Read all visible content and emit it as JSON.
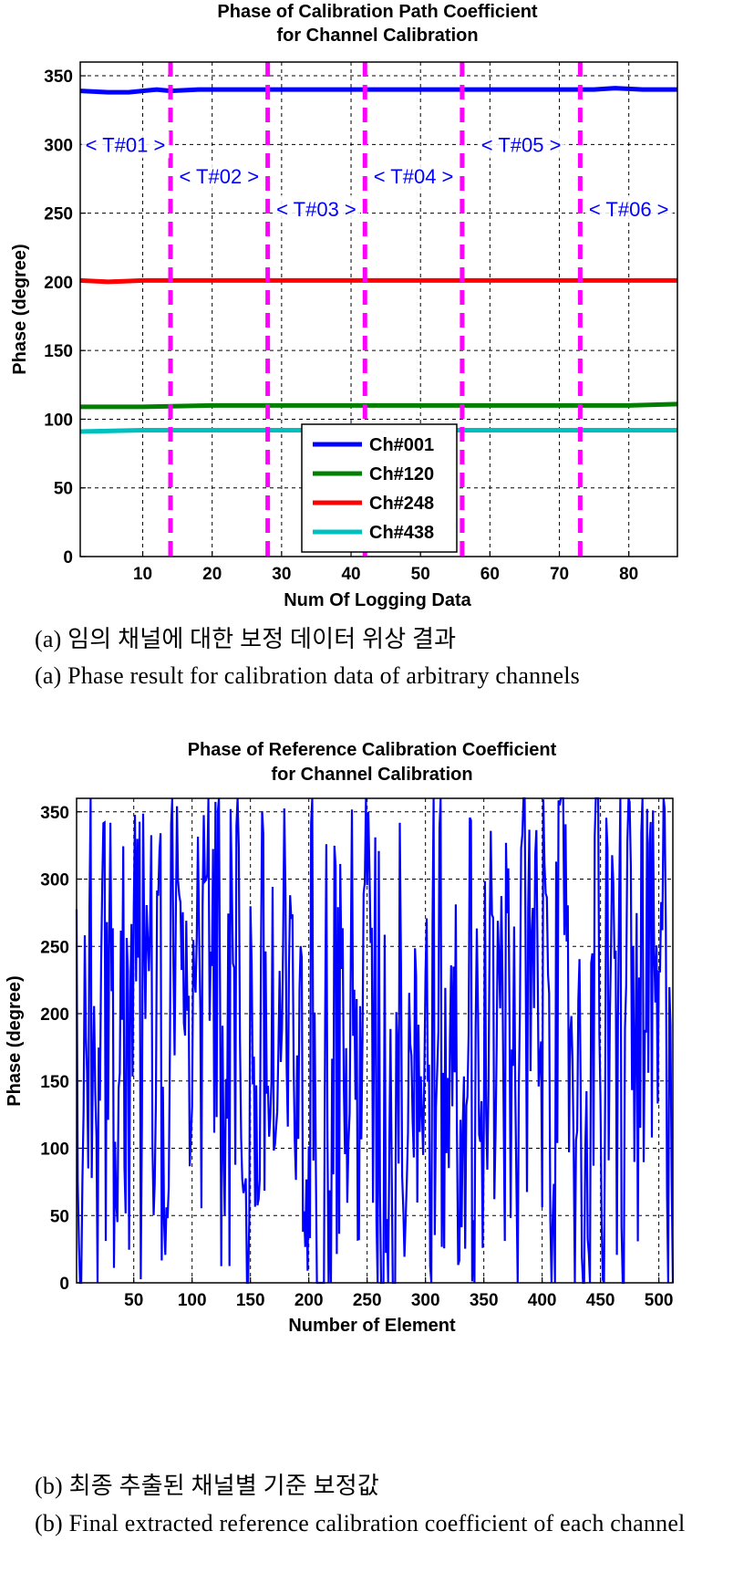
{
  "figure_a": {
    "caption_ko": "(a) 임의 채널에 대한 보정 데이터 위상 결과",
    "caption_en": "(a) Phase result for calibration data of arbitrary channels"
  },
  "figure_b": {
    "caption_ko": "(b) 최종 추출된 채널별 기준 보정값",
    "caption_en": "(b) Final extracted reference calibration coefficient of each channel"
  },
  "chart_data": [
    {
      "type": "line",
      "title": [
        "Phase of Calibration Path Coefficient",
        "for Channel Calibration"
      ],
      "xlabel": "Num Of Logging Data",
      "ylabel": "Phase (degree)",
      "xlim": [
        1,
        87
      ],
      "ylim": [
        0,
        360
      ],
      "xticks": [
        10,
        20,
        30,
        40,
        50,
        60,
        70,
        80
      ],
      "yticks": [
        0,
        50,
        100,
        150,
        200,
        250,
        300,
        350
      ],
      "grid": true,
      "legend_position": "bottom-center",
      "series": [
        {
          "name": "Ch#001",
          "color": "#0000ff",
          "x": [
            1,
            5,
            8,
            12,
            14,
            18,
            25,
            40,
            60,
            75,
            78,
            82,
            87
          ],
          "y": [
            339,
            338,
            338,
            340,
            339,
            340,
            340,
            340,
            340,
            340,
            341,
            340,
            340
          ]
        },
        {
          "name": "Ch#120",
          "color": "#008000",
          "x": [
            1,
            10,
            20,
            40,
            60,
            80,
            87
          ],
          "y": [
            109,
            109,
            110,
            110,
            110,
            110,
            111
          ]
        },
        {
          "name": "Ch#248",
          "color": "#ff0000",
          "x": [
            1,
            5,
            10,
            14,
            20,
            40,
            60,
            87
          ],
          "y": [
            201,
            200,
            201,
            201,
            201,
            201,
            201,
            201
          ]
        },
        {
          "name": "Ch#438",
          "color": "#00bfbf",
          "x": [
            1,
            10,
            20,
            40,
            60,
            87
          ],
          "y": [
            91,
            92,
            92,
            92,
            92,
            92
          ]
        }
      ],
      "markers": {
        "color": "#ff00ff",
        "x": [
          14,
          28,
          42,
          56,
          73
        ],
        "intervals": [
          {
            "label": "T#01",
            "x0": 1,
            "x1": 14,
            "y": 300
          },
          {
            "label": "T#02",
            "x0": 14,
            "x1": 28,
            "y": 277
          },
          {
            "label": "T#03",
            "x0": 28,
            "x1": 42,
            "y": 253
          },
          {
            "label": "T#04",
            "x0": 42,
            "x1": 56,
            "y": 277
          },
          {
            "label": "T#05",
            "x0": 56,
            "x1": 73,
            "y": 300
          },
          {
            "label": "T#06",
            "x0": 73,
            "x1": 87,
            "y": 253
          }
        ]
      }
    },
    {
      "type": "line",
      "title": [
        "Phase of Reference Calibration Coefficient",
        "for Channel Calibration"
      ],
      "xlabel": "Number of Element",
      "ylabel": "Phase (degree)",
      "xlim": [
        1,
        512
      ],
      "ylim": [
        0,
        360
      ],
      "xticks": [
        50,
        100,
        150,
        200,
        250,
        300,
        350,
        400,
        450,
        500
      ],
      "yticks": [
        0,
        50,
        100,
        150,
        200,
        250,
        300,
        350
      ],
      "grid": true,
      "series": [
        {
          "name": "",
          "color": "#0000ff",
          "n_points": 512,
          "description_values_generated": true
        }
      ]
    }
  ]
}
